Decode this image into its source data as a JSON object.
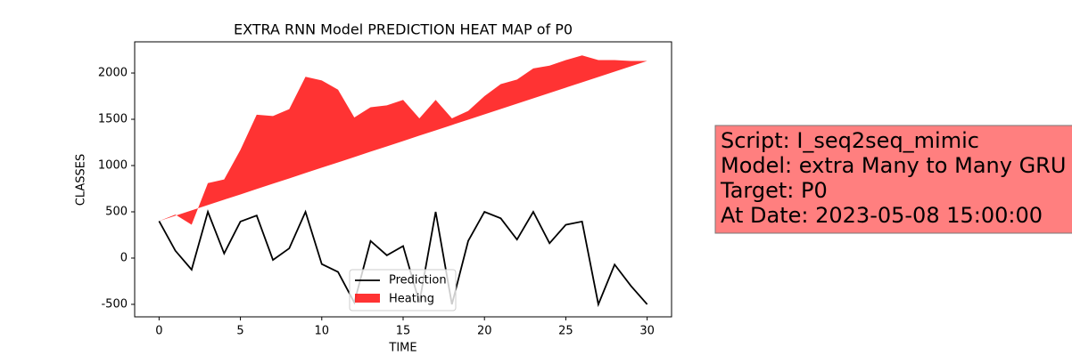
{
  "chart_data": {
    "type": "line",
    "title": "EXTRA RNN Model PREDICTION HEAT MAP of P0",
    "x_label": "TIME",
    "y_label": "CLASSES",
    "x": [
      0,
      1,
      2,
      3,
      4,
      5,
      6,
      7,
      8,
      9,
      10,
      11,
      12,
      13,
      14,
      15,
      16,
      17,
      18,
      19,
      20,
      21,
      22,
      23,
      24,
      25,
      26,
      27,
      28,
      29,
      30
    ],
    "series": [
      {
        "name": "Prediction",
        "color": "#000000",
        "values": [
          400,
          80,
          -125,
          500,
          50,
          395,
          460,
          -20,
          105,
          500,
          -65,
          -150,
          -480,
          185,
          30,
          130,
          -480,
          500,
          -500,
          185,
          500,
          430,
          200,
          500,
          160,
          360,
          395,
          -500,
          -70,
          -300,
          -500
        ]
      },
      {
        "name": "Heating",
        "color": "#ff0000",
        "values": [
          400,
          470,
          360,
          810,
          850,
          1170,
          1550,
          1535,
          1610,
          1960,
          1920,
          1820,
          1520,
          1630,
          1650,
          1710,
          1510,
          1710,
          1510,
          1590,
          1750,
          1880,
          1930,
          2050,
          2080,
          2140,
          2190,
          2140,
          2140,
          2130,
          2130
        ],
        "lower": [
          400,
          458,
          515,
          573,
          631,
          688,
          746,
          804,
          861,
          919,
          977,
          1034,
          1092,
          1150,
          1207,
          1265,
          1323,
          1380,
          1438,
          1496,
          1553,
          1611,
          1669,
          1726,
          1784,
          1842,
          1899,
          1957,
          2015,
          2072,
          2130
        ]
      }
    ],
    "xlim": [
      -1.5,
      31.5
    ],
    "xticks": [
      0,
      5,
      10,
      15,
      20,
      25,
      30
    ],
    "ylim": [
      -635,
      2337
    ],
    "yticks": [
      -500,
      0,
      500,
      1000,
      1500,
      2000
    ],
    "legend": "lower center",
    "annotation": {
      "lines": [
        "Script: I_seq2seq_mimic",
        "Model: extra Many to Many GRU",
        "Target: P0",
        "At Date: 2023-05-08 15:00:00"
      ],
      "color": "#ff7f7f"
    }
  }
}
